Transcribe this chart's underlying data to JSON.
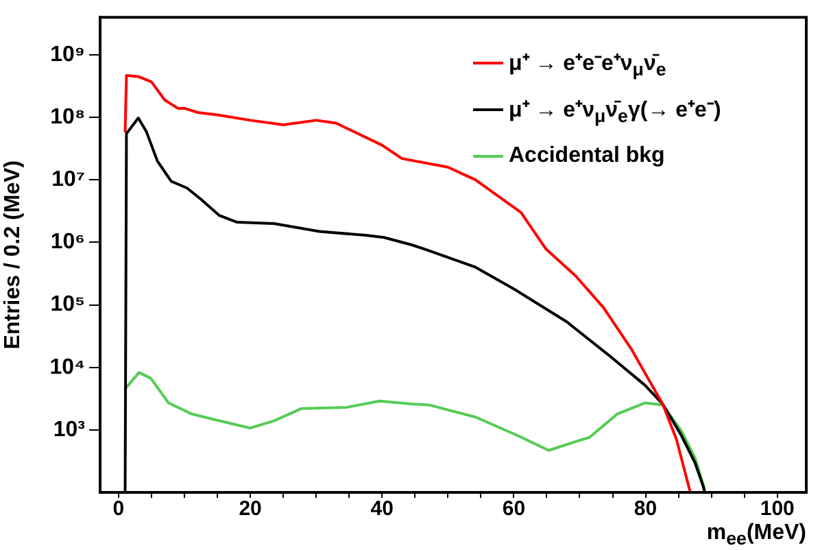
{
  "chart_data": {
    "type": "line",
    "xlabel": "m$_{ee}$(MeV)",
    "ylabel": "Entries / 0.2 (MeV)",
    "log": "y",
    "grid": false,
    "legend": "top right",
    "marker": "none",
    "line_style": "solid",
    "xlim": [
      -2.8,
      104.4
    ],
    "xticks": [
      0,
      {
        "value": 5,
        "label": null
      },
      {
        "value": 10,
        "label": null
      },
      {
        "value": 15,
        "label": null
      },
      20,
      {
        "value": 25,
        "label": null
      },
      {
        "value": 30,
        "label": null
      },
      {
        "value": 35,
        "label": null
      },
      40,
      {
        "value": 45,
        "label": null
      },
      {
        "value": 50,
        "label": null
      },
      {
        "value": 55,
        "label": null
      },
      60,
      {
        "value": 65,
        "label": null
      },
      {
        "value": 70,
        "label": null
      },
      {
        "value": 75,
        "label": null
      },
      80,
      {
        "value": 85,
        "label": null
      },
      {
        "value": 90,
        "label": null
      },
      {
        "value": 95,
        "label": null
      },
      100
    ],
    "ylim": [
      100,
      4000000000
    ],
    "yticks": [
      {
        "value": 1000,
        "label": "10³"
      },
      {
        "value": 10000,
        "label": "10⁴"
      },
      {
        "value": 100000,
        "label": "10⁵"
      },
      {
        "value": 1000000,
        "label": "10⁶"
      },
      {
        "value": 10000000,
        "label": "10⁷"
      },
      {
        "value": 100000000,
        "label": "10⁸"
      },
      {
        "value": 1000000000,
        "label": "10⁹"
      }
    ],
    "series": [
      {
        "name": "μ⁺ → e⁺e⁻e⁺ν$_{μ}$ν̄$_{e}$",
        "color": "#ff0000",
        "x": [
          1.0,
          1.2,
          3,
          5,
          7,
          9,
          10,
          12,
          15,
          20,
          25,
          30,
          33,
          40,
          43,
          50,
          54.2,
          61.1,
          64.9,
          69.4,
          73.6,
          77.8,
          81.3,
          82.6,
          84.7,
          86.1,
          86.8
        ],
        "values": [
          60000000,
          470000000,
          450000000,
          370000000,
          190000000,
          140000000,
          140000000,
          120000000,
          110000000,
          90000000,
          76000000,
          90000000,
          81000000,
          36000000,
          22000000,
          16000000,
          10000000,
          3000000,
          780000,
          290000,
          91000,
          20000,
          4500,
          2600,
          700,
          190,
          100
        ]
      },
      {
        "name": "μ⁺ → e⁺ν$_{μ}$ν̄$_{e}$γ(→ e⁺e⁻)",
        "color": "#000000",
        "x": [
          1.0,
          1.2,
          3.0,
          4.2,
          5.9,
          8.0,
          10.4,
          12.5,
          15.3,
          18,
          23.6,
          30.5,
          37.5,
          40.3,
          44.4,
          46.5,
          54.2,
          60.4,
          68,
          75,
          79.9,
          82.6,
          85.4,
          87.5,
          88.7,
          89.0
        ],
        "values": [
          100,
          55000000,
          98000000,
          60000000,
          20000000,
          9500000,
          7400000,
          4900000,
          2700000,
          2100000,
          2000000,
          1500000,
          1300000,
          1200000,
          920000,
          780000,
          400000,
          170000,
          54000,
          14000,
          5200,
          2600,
          830,
          300,
          130,
          100
        ]
      },
      {
        "name": "Accidental bkg",
        "color": "#55cc55",
        "x": [
          1.0,
          3.1,
          4.9,
          7.6,
          11.1,
          15.3,
          20,
          23.6,
          27.8,
          34.7,
          39.6,
          44.4,
          47.2,
          54.2,
          60.4,
          65.3,
          69.4,
          71.5,
          75.7,
          79.9,
          82.6,
          85.4,
          87.5,
          88.9
        ],
        "values": [
          4500,
          8300,
          6700,
          2700,
          1800,
          1400,
          1070,
          1400,
          2200,
          2300,
          2900,
          2600,
          2500,
          1600,
          830,
          470,
          650,
          760,
          1800,
          2700,
          2500,
          980,
          360,
          120
        ]
      }
    ]
  }
}
